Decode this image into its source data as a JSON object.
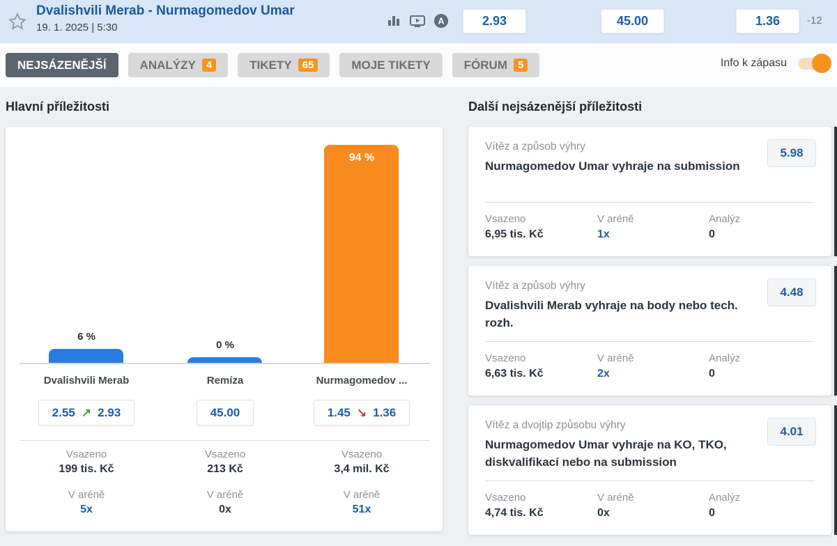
{
  "header": {
    "title": "Dvalishvili Merab - Nurmagomedov Umar",
    "datetime": "19. 1. 2025 | 5:30",
    "odds": {
      "home": "2.93",
      "draw": "45.00",
      "away": "1.36"
    },
    "trend_indicator": "-12",
    "icons": [
      "stats-bars-icon",
      "tv-stream-icon",
      "analysis-a-icon"
    ]
  },
  "tabs": [
    {
      "label": "NEJSÁZENĚJŠÍ",
      "badge": "",
      "active": true
    },
    {
      "label": "ANALÝZY",
      "badge": "4",
      "active": false
    },
    {
      "label": "TIKETY",
      "badge": "65",
      "active": false
    },
    {
      "label": "MOJE TIKETY",
      "badge": "",
      "active": false
    },
    {
      "label": "FÓRUM",
      "badge": "5",
      "active": false
    }
  ],
  "info_toggle": {
    "label": "Info k zápasu",
    "state": "on"
  },
  "labels": {
    "stake": "Vsazeno",
    "arena": "V aréně",
    "analyses": "Analýz"
  },
  "left": {
    "heading": "Hlavní příležitosti",
    "columns": [
      {
        "name": "Dvalishvili Merab",
        "percent_label": "6 %",
        "odds_open": "2.55",
        "odds_current": "2.93",
        "trend": "up",
        "stake": "199 tis. Kč",
        "arena": "5x",
        "arena_highlight": true
      },
      {
        "name": "Remíza",
        "percent_label": "0 %",
        "odds_current": "45.00",
        "stake": "213 Kč",
        "arena": "0x",
        "arena_highlight": false
      },
      {
        "name": "Nurmagomedov ...",
        "percent_label": "94 %",
        "odds_open": "1.45",
        "odds_current": "1.36",
        "trend": "down",
        "stake": "3,4 mil. Kč",
        "arena": "51x",
        "arena_highlight": true
      }
    ]
  },
  "chart_data": {
    "type": "bar",
    "title": "Hlavní příležitosti",
    "categories": [
      "Dvalishvili Merab",
      "Remíza",
      "Nurmagomedov ..."
    ],
    "values": [
      6,
      0,
      94
    ],
    "unit": "%",
    "bar_colors": [
      "#2b7ce0",
      "#2b7ce0",
      "#f78b1e"
    ],
    "ylim": [
      0,
      100
    ],
    "grid": false,
    "annotations": [
      "6 %",
      "0 %",
      "94 %"
    ]
  },
  "right": {
    "heading": "Další nejsázenější příležitosti",
    "cards": [
      {
        "market": "Vítěz a způsob výhry",
        "selection": "Nurmagomedov Umar vyhraje na submission",
        "odds": "5.98",
        "stake": "6,95 tis. Kč",
        "arena": "1x",
        "arena_highlight": true,
        "analyses": "0"
      },
      {
        "market": "Vítěz a způsob výhry",
        "selection": "Dvalishvili Merab vyhraje na body nebo tech. rozh.",
        "odds": "4.48",
        "stake": "6,63 tis. Kč",
        "arena": "2x",
        "arena_highlight": true,
        "analyses": "0"
      },
      {
        "market": "Vítěz a dvojtip způsobu výhry",
        "selection": "Nurmagomedov Umar vyhraje na KO, TKO, diskvalifikací nebo na submission",
        "odds": "4.01",
        "stake": "4,74 tis. Kč",
        "arena": "0x",
        "arena_highlight": false,
        "analyses": "0"
      }
    ]
  },
  "colors": {
    "header_bg": "#d8e6f8",
    "accent_orange": "#f7941d",
    "bar_blue": "#2b7ce0",
    "bar_orange": "#f78b1e",
    "odds_blue": "#1d5da8",
    "trend_up_green": "#3aa544",
    "trend_down_red": "#d63b3b",
    "active_tab": "#5a6570"
  }
}
